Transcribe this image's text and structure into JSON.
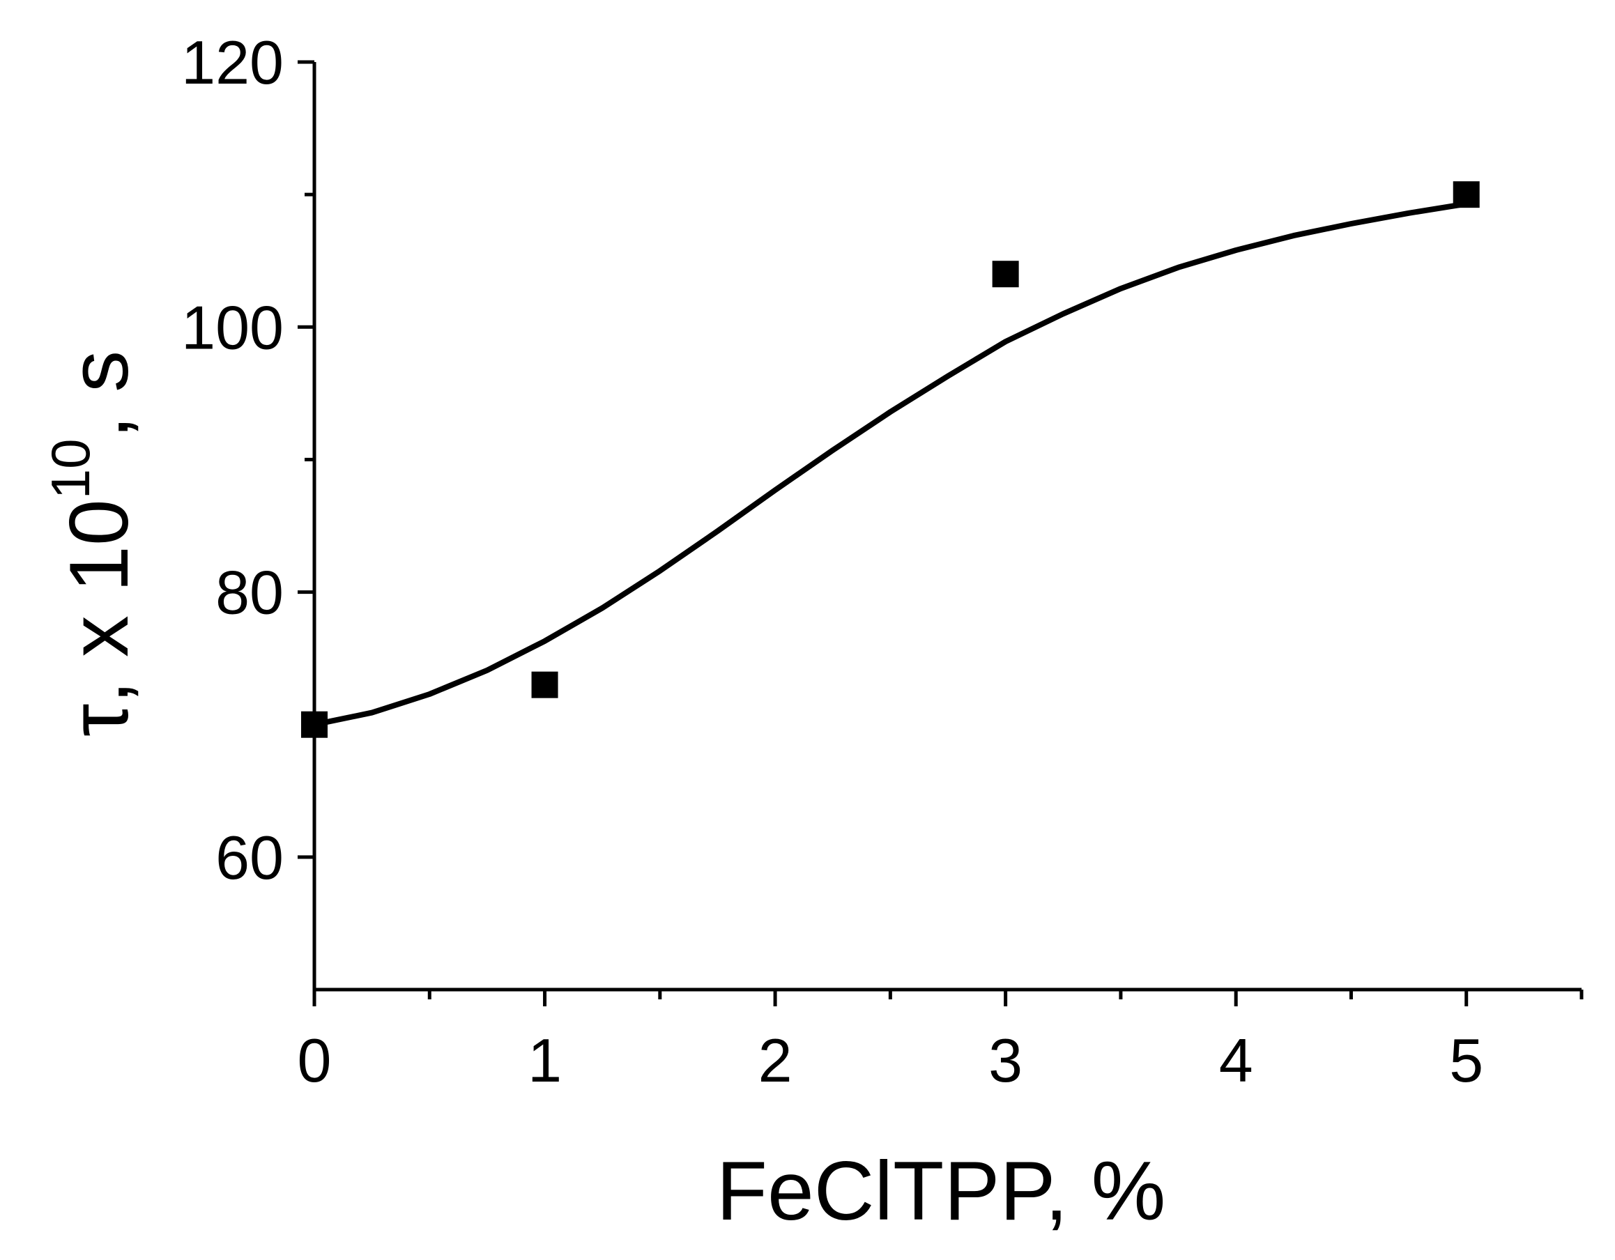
{
  "chart_data": {
    "type": "scatter",
    "xlabel": "FeClTPP, %",
    "ylabel": {
      "prefix": "τ, x 10",
      "superscript": "10",
      "suffix": ", s"
    },
    "xlim": [
      0,
      5.5
    ],
    "ylim": [
      50,
      120
    ],
    "x_ticks": [
      "0",
      "1",
      "2",
      "3",
      "4",
      "5"
    ],
    "y_ticks": [
      "60",
      "80",
      "100",
      "120"
    ],
    "series": [
      {
        "marker": "square",
        "x": [
          0,
          1,
          3,
          5
        ],
        "y": [
          70,
          73,
          104,
          110
        ]
      }
    ],
    "fit_curve": {
      "x": [
        0,
        0.25,
        0.5,
        0.75,
        1.0,
        1.25,
        1.5,
        1.75,
        2.0,
        2.25,
        2.5,
        2.75,
        3.0,
        3.25,
        3.5,
        3.75,
        4.0,
        4.25,
        4.5,
        4.75,
        5.0
      ],
      "y": [
        70.0,
        70.9,
        72.3,
        74.1,
        76.3,
        78.8,
        81.6,
        84.6,
        87.7,
        90.7,
        93.6,
        96.3,
        98.9,
        101.0,
        102.9,
        104.5,
        105.8,
        106.9,
        107.8,
        108.6,
        109.3
      ]
    },
    "colors": {
      "ink": "#000000",
      "background": "#ffffff"
    },
    "grid": false,
    "legend": "none"
  }
}
